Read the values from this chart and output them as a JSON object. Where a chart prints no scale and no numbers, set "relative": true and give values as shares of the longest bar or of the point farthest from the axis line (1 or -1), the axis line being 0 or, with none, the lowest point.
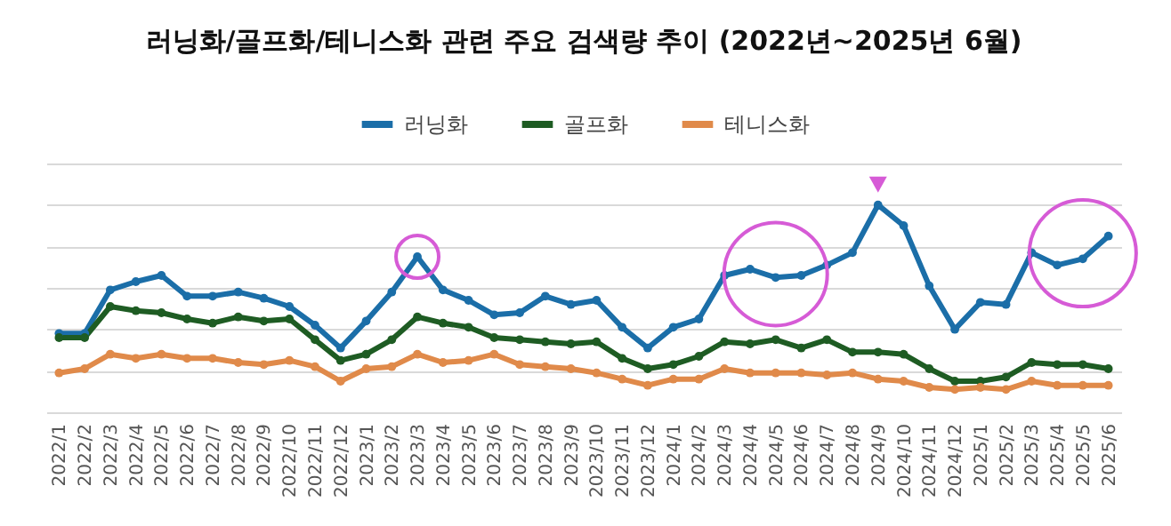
{
  "chart_data": {
    "type": "line",
    "title": "러닝화/골프화/테니스화 관련 주요 검색량 추이 (2022년~2025년 6월)",
    "relative": true,
    "grid": "y",
    "legend": "top",
    "marker": "circle",
    "line_style": "solid",
    "categories": [
      "2022/1",
      "2022/2",
      "2022/3",
      "2022/4",
      "2022/5",
      "2022/6",
      "2022/7",
      "2022/8",
      "2022/9",
      "2022/10",
      "2022/11",
      "2022/12",
      "2023/1",
      "2023/2",
      "2023/3",
      "2023/4",
      "2023/5",
      "2023/6",
      "2023/7",
      "2023/8",
      "2023/9",
      "2023/10",
      "2023/11",
      "2023/12",
      "2024/1",
      "2024/2",
      "2024/3",
      "2024/4",
      "2024/5",
      "2024/6",
      "2024/7",
      "2024/8",
      "2024/9",
      "2024/10",
      "2024/11",
      "2024/12",
      "2025/1",
      "2025/2",
      "2025/3",
      "2025/4",
      "2025/5",
      "2025/6"
    ],
    "series": [
      {
        "name": "러닝화",
        "color": "#1b6ea8",
        "values": [
          0.38,
          0.38,
          0.59,
          0.63,
          0.66,
          0.56,
          0.56,
          0.58,
          0.55,
          0.51,
          0.42,
          0.31,
          0.44,
          0.58,
          0.75,
          0.59,
          0.54,
          0.47,
          0.48,
          0.56,
          0.52,
          0.54,
          0.41,
          0.31,
          0.41,
          0.45,
          0.66,
          0.69,
          0.65,
          0.66,
          0.71,
          0.77,
          1,
          0.9,
          0.61,
          0.4,
          0.53,
          0.52,
          0.77,
          0.71,
          0.74,
          0.85
        ]
      },
      {
        "name": "골프화",
        "color": "#1e5c23",
        "values": [
          0.36,
          0.36,
          0.51,
          0.49,
          0.48,
          0.45,
          0.43,
          0.46,
          0.44,
          0.45,
          0.35,
          0.25,
          0.28,
          0.35,
          0.46,
          0.43,
          0.41,
          0.36,
          0.35,
          0.34,
          0.33,
          0.34,
          0.26,
          0.21,
          0.23,
          0.27,
          0.34,
          0.33,
          0.35,
          0.31,
          0.35,
          0.29,
          0.29,
          0.28,
          0.21,
          0.15,
          0.15,
          0.17,
          0.24,
          0.23,
          0.23,
          0.21
        ]
      },
      {
        "name": "테니스화",
        "color": "#e08a4a",
        "values": [
          0.19,
          0.21,
          0.28,
          0.26,
          0.28,
          0.26,
          0.26,
          0.24,
          0.23,
          0.25,
          0.22,
          0.15,
          0.21,
          0.22,
          0.28,
          0.24,
          0.25,
          0.28,
          0.23,
          0.22,
          0.21,
          0.19,
          0.16,
          0.13,
          0.16,
          0.16,
          0.21,
          0.19,
          0.19,
          0.19,
          0.18,
          0.19,
          0.16,
          0.15,
          0.12,
          0.11,
          0.12,
          0.11,
          0.15,
          0.13,
          0.13,
          0.13
        ]
      }
    ]
  }
}
